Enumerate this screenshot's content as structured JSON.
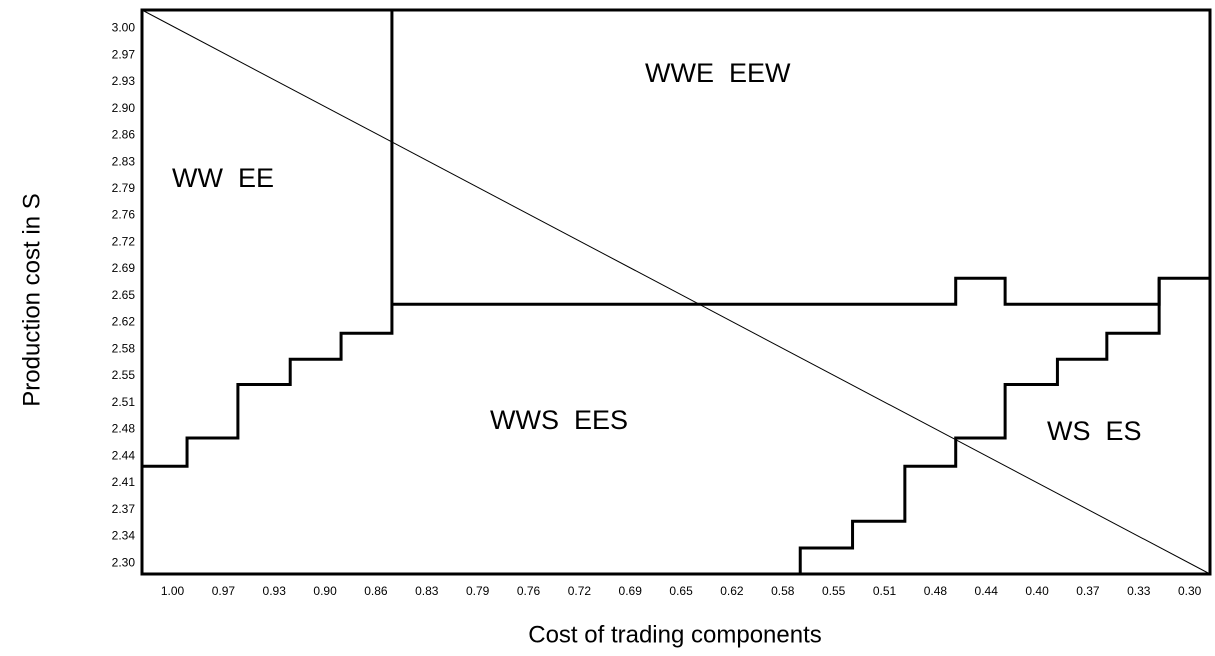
{
  "chart_data": {
    "type": "line",
    "xlabel": "Cost of trading components",
    "ylabel": "Production cost in S",
    "xlim": [
      1.021,
      0.286
    ],
    "ylim": [
      2.286,
      3.024
    ],
    "xticks": [
      {
        "value": 1.0,
        "label": "1.00"
      },
      {
        "value": 0.965,
        "label": "0.97"
      },
      {
        "value": 0.93,
        "label": "0.93"
      },
      {
        "value": 0.895,
        "label": "0.90"
      },
      {
        "value": 0.86,
        "label": "0.86"
      },
      {
        "value": 0.825,
        "label": "0.83"
      },
      {
        "value": 0.79,
        "label": "0.79"
      },
      {
        "value": 0.755,
        "label": "0.76"
      },
      {
        "value": 0.72,
        "label": "0.72"
      },
      {
        "value": 0.685,
        "label": "0.69"
      },
      {
        "value": 0.65,
        "label": "0.65"
      },
      {
        "value": 0.615,
        "label": "0.62"
      },
      {
        "value": 0.58,
        "label": "0.58"
      },
      {
        "value": 0.545,
        "label": "0.55"
      },
      {
        "value": 0.51,
        "label": "0.51"
      },
      {
        "value": 0.475,
        "label": "0.48"
      },
      {
        "value": 0.44,
        "label": "0.44"
      },
      {
        "value": 0.405,
        "label": "0.40"
      },
      {
        "value": 0.37,
        "label": "0.37"
      },
      {
        "value": 0.335,
        "label": "0.33"
      },
      {
        "value": 0.3,
        "label": "0.30"
      }
    ],
    "yticks": [
      {
        "value": 3.0,
        "label": "3.00"
      },
      {
        "value": 2.965,
        "label": "2.97"
      },
      {
        "value": 2.93,
        "label": "2.93"
      },
      {
        "value": 2.895,
        "label": "2.90"
      },
      {
        "value": 2.86,
        "label": "2.86"
      },
      {
        "value": 2.825,
        "label": "2.83"
      },
      {
        "value": 2.79,
        "label": "2.79"
      },
      {
        "value": 2.755,
        "label": "2.76"
      },
      {
        "value": 2.72,
        "label": "2.72"
      },
      {
        "value": 2.685,
        "label": "2.69"
      },
      {
        "value": 2.65,
        "label": "2.65"
      },
      {
        "value": 2.615,
        "label": "2.62"
      },
      {
        "value": 2.58,
        "label": "2.58"
      },
      {
        "value": 2.545,
        "label": "2.55"
      },
      {
        "value": 2.51,
        "label": "2.51"
      },
      {
        "value": 2.475,
        "label": "2.48"
      },
      {
        "value": 2.44,
        "label": "2.44"
      },
      {
        "value": 2.405,
        "label": "2.41"
      },
      {
        "value": 2.37,
        "label": "2.37"
      },
      {
        "value": 2.335,
        "label": "2.34"
      },
      {
        "value": 2.3,
        "label": "2.30"
      }
    ],
    "lines": [
      {
        "color": "#000",
        "width": 1,
        "x": [
          1.021,
          0.286
        ],
        "y": [
          3.024,
          2.286
        ]
      },
      {
        "color": "#000",
        "width": 3,
        "x": [
          1.021,
          0.99,
          0.99,
          0.955,
          0.955,
          0.919,
          0.919,
          0.884,
          0.884,
          0.849,
          0.849,
          0.849
        ],
        "y": [
          2.427,
          2.427,
          2.464,
          2.464,
          2.534,
          2.534,
          2.567,
          2.567,
          2.601,
          2.601,
          2.639,
          3.024
        ]
      },
      {
        "color": "#000",
        "width": 3,
        "x": [
          0.849,
          0.461,
          0.461,
          0.427,
          0.427,
          0.321,
          0.321,
          0.286
        ],
        "y": [
          2.639,
          2.639,
          2.673,
          2.673,
          2.639,
          2.639,
          2.673,
          2.673
        ]
      },
      {
        "color": "#000",
        "width": 3,
        "x": [
          0.568,
          0.568,
          0.532,
          0.532,
          0.496,
          0.496,
          0.461,
          0.461,
          0.427,
          0.427,
          0.391,
          0.391,
          0.357,
          0.357,
          0.321,
          0.321
        ],
        "y": [
          2.286,
          2.32,
          2.32,
          2.355,
          2.355,
          2.427,
          2.427,
          2.464,
          2.464,
          2.534,
          2.534,
          2.567,
          2.567,
          2.601,
          2.601,
          2.673
        ]
      }
    ],
    "annotations": [
      "WW  EE",
      "WWE  EEW",
      "WWS  EES",
      "WS  ES"
    ]
  }
}
